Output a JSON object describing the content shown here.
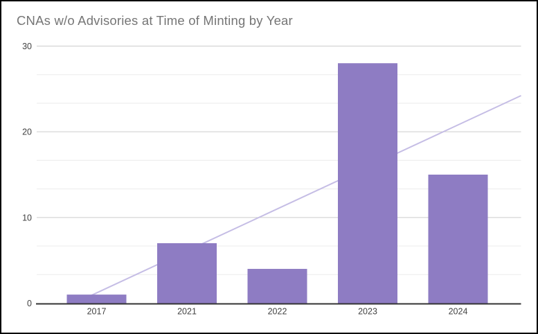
{
  "window": {
    "background": "#ffffff",
    "border_color": "#000000"
  },
  "chart_data": {
    "type": "bar",
    "title": "CNAs w/o Advisories at Time of Minting by Year",
    "title_color": "#757575",
    "categories": [
      "2017",
      "2021",
      "2022",
      "2023",
      "2024"
    ],
    "values": [
      1,
      7,
      4,
      28,
      15
    ],
    "bar_color": "#8e7cc3",
    "trendline": {
      "type": "linear",
      "color": "#c5bde5",
      "description": "light purple linear trendline rising from ~0 at the 2017 bar to ~24 at the right plot edge, drawn behind the bars"
    },
    "xlabel": "",
    "ylabel": "",
    "ylim": [
      0,
      30
    ],
    "yticks": [
      0,
      10,
      20,
      30
    ],
    "minor_gridlines_per_major": 3,
    "grid": true,
    "legend": "none",
    "axis_label_color": "#424242",
    "gridline_major_color": "#cccccc",
    "gridline_minor_color": "#ebebeb",
    "axis_line_color": "#333333"
  }
}
